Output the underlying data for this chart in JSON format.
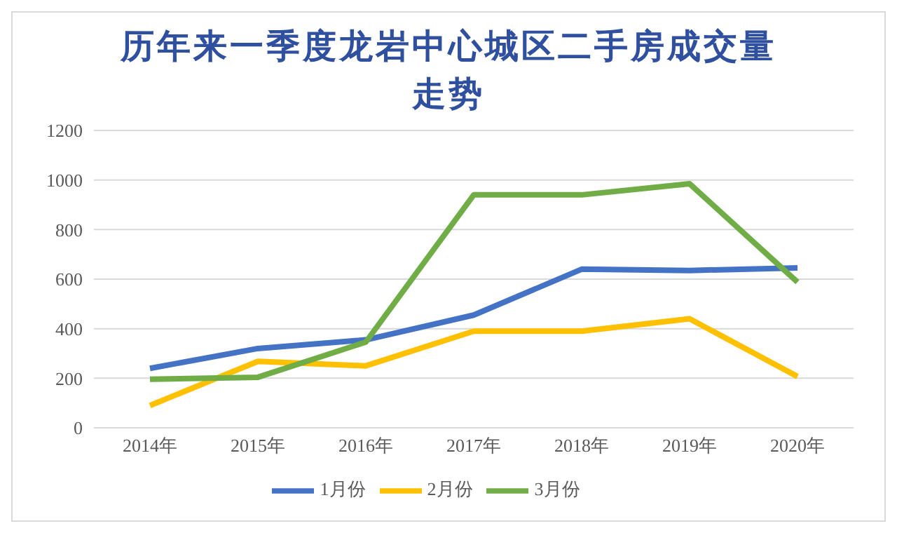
{
  "chart_data": {
    "type": "line",
    "title": "历年来一季度龙岩中心城区二手房成交量走势",
    "categories": [
      "2014年",
      "2015年",
      "2016年",
      "2017年",
      "2018年",
      "2019年",
      "2020年"
    ],
    "series": [
      {
        "name": "1月份",
        "color": "#4472c4",
        "values": [
          240,
          320,
          355,
          455,
          640,
          635,
          645
        ]
      },
      {
        "name": "2月份",
        "color": "#ffc000",
        "values": [
          90,
          268,
          250,
          390,
          390,
          440,
          207
        ]
      },
      {
        "name": "3月份",
        "color": "#70ad47",
        "values": [
          196,
          204,
          346,
          940,
          940,
          985,
          588
        ]
      }
    ],
    "ylim": [
      0,
      1200
    ],
    "yticks": [
      0,
      200,
      400,
      600,
      800,
      1000,
      1200
    ],
    "grid": "y",
    "legend": "bottom",
    "marker": "none",
    "line_style": "solid"
  }
}
